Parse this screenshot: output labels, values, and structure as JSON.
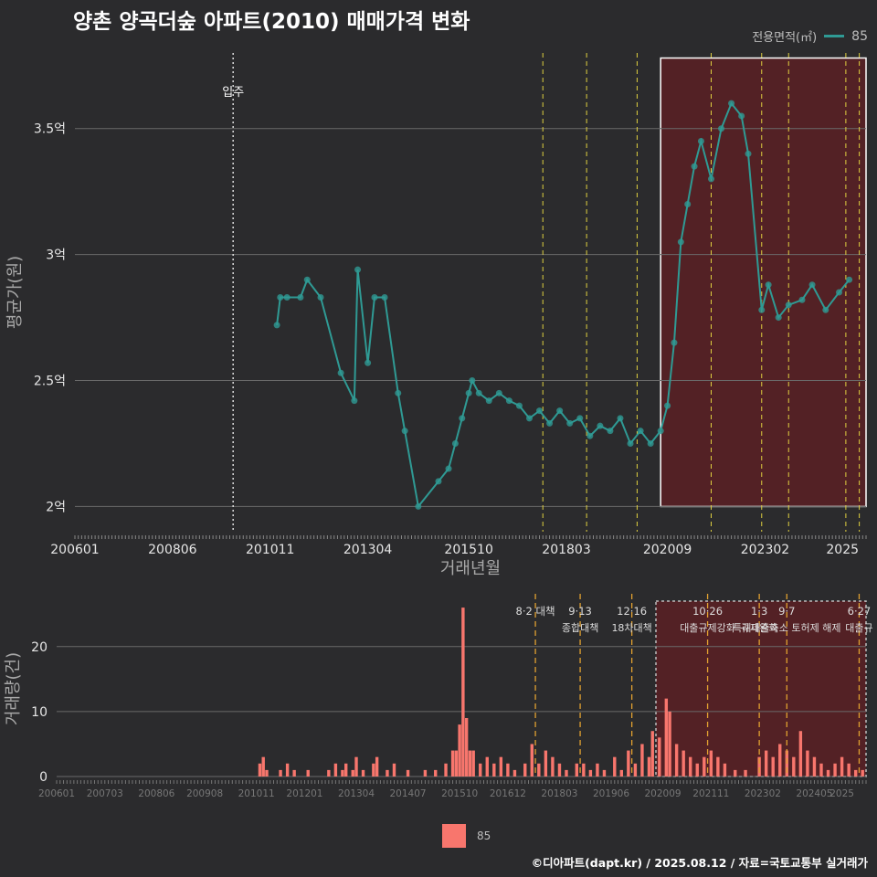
{
  "title": "양촌 양곡더숲 아파트(2010) 매매가격 변화",
  "caption": "©디아파트(dapt.kr) / 2025.08.12 / 자료=국토교통부 실거래가",
  "colors": {
    "background": "#2b2b2d",
    "price_series": "#2f9a94",
    "volume_bars": "#f8766d",
    "policy_lines": "#e0d040",
    "policy_lines_bottom": "#e0a030",
    "highlight_fill": "#5a2024",
    "grid": "#6a6a6a"
  },
  "chart_data": [
    {
      "type": "line",
      "name": "price",
      "xlabel": "거래년월",
      "ylabel": "평균가(원)",
      "xlim": [
        "2006-01",
        "2025-08"
      ],
      "ylim": [
        1.9,
        3.8
      ],
      "x_ticks": [
        "200601",
        "200806",
        "201011",
        "201304",
        "201510",
        "201803",
        "202009",
        "202302",
        "2025"
      ],
      "y_ticks": [
        {
          "v": 2.0,
          "label": "2억"
        },
        {
          "v": 2.5,
          "label": "2.5억"
        },
        {
          "v": 3.0,
          "label": "3억"
        },
        {
          "v": 3.5,
          "label": "3.5억"
        }
      ],
      "legend": {
        "title": "전용면적(㎡)",
        "entries": [
          "85"
        ],
        "position": "top-right"
      },
      "annotations": [
        {
          "x": "2009-12",
          "label": "입주"
        }
      ],
      "policy_dates": [
        "2017-08",
        "2018-09",
        "2019-12",
        "2021-10",
        "2023-01",
        "2023-09",
        "2025-02",
        "2025-06"
      ],
      "highlight": {
        "x_from": "2020-07",
        "x_to": "2025-08",
        "y_from": 2.0,
        "y_to": 3.78
      },
      "series": [
        {
          "name": "85",
          "points": [
            [
              "2011-01",
              2.72
            ],
            [
              "2011-02",
              2.83
            ],
            [
              "2011-04",
              2.83
            ],
            [
              "2011-08",
              2.83
            ],
            [
              "2011-10",
              2.9
            ],
            [
              "2012-02",
              2.83
            ],
            [
              "2012-08",
              2.53
            ],
            [
              "2012-12",
              2.42
            ],
            [
              "2013-01",
              2.94
            ],
            [
              "2013-04",
              2.57
            ],
            [
              "2013-06",
              2.83
            ],
            [
              "2013-09",
              2.83
            ],
            [
              "2014-01",
              2.45
            ],
            [
              "2014-03",
              2.3
            ],
            [
              "2014-07",
              2.0
            ],
            [
              "2015-01",
              2.1
            ],
            [
              "2015-04",
              2.15
            ],
            [
              "2015-06",
              2.25
            ],
            [
              "2015-08",
              2.35
            ],
            [
              "2015-10",
              2.45
            ],
            [
              "2015-11",
              2.5
            ],
            [
              "2016-01",
              2.45
            ],
            [
              "2016-04",
              2.42
            ],
            [
              "2016-07",
              2.45
            ],
            [
              "2016-10",
              2.42
            ],
            [
              "2017-01",
              2.4
            ],
            [
              "2017-04",
              2.35
            ],
            [
              "2017-07",
              2.38
            ],
            [
              "2017-10",
              2.33
            ],
            [
              "2018-01",
              2.38
            ],
            [
              "2018-04",
              2.33
            ],
            [
              "2018-07",
              2.35
            ],
            [
              "2018-10",
              2.28
            ],
            [
              "2019-01",
              2.32
            ],
            [
              "2019-04",
              2.3
            ],
            [
              "2019-07",
              2.35
            ],
            [
              "2019-10",
              2.25
            ],
            [
              "2020-01",
              2.3
            ],
            [
              "2020-04",
              2.25
            ],
            [
              "2020-07",
              2.3
            ],
            [
              "2020-09",
              2.4
            ],
            [
              "2020-11",
              2.65
            ],
            [
              "2021-01",
              3.05
            ],
            [
              "2021-03",
              3.2
            ],
            [
              "2021-05",
              3.35
            ],
            [
              "2021-07",
              3.45
            ],
            [
              "2021-10",
              3.3
            ],
            [
              "2022-01",
              3.5
            ],
            [
              "2022-04",
              3.6
            ],
            [
              "2022-07",
              3.55
            ],
            [
              "2022-09",
              3.4
            ],
            [
              "2023-01",
              2.78
            ],
            [
              "2023-03",
              2.88
            ],
            [
              "2023-06",
              2.75
            ],
            [
              "2023-09",
              2.8
            ],
            [
              "2024-01",
              2.82
            ],
            [
              "2024-04",
              2.88
            ],
            [
              "2024-08",
              2.78
            ],
            [
              "2024-12",
              2.85
            ],
            [
              "2025-03",
              2.9
            ]
          ]
        }
      ]
    },
    {
      "type": "bar",
      "name": "volume",
      "ylabel": "거래량(건)",
      "ylim": [
        0,
        27
      ],
      "x_ticks": [
        "200601",
        "200703",
        "200806",
        "200908",
        "201011",
        "201201",
        "201304",
        "201407",
        "201510",
        "201612",
        "201803",
        "201906",
        "202009",
        "202111",
        "202302",
        "202405",
        "2025"
      ],
      "y_ticks": [
        {
          "v": 0,
          "label": "0"
        },
        {
          "v": 10,
          "label": "10"
        },
        {
          "v": 20,
          "label": "20"
        }
      ],
      "legend": {
        "entries": [
          "85"
        ],
        "position": "bottom"
      },
      "policies": [
        {
          "date": "2017-08",
          "line1": "8·2 대책",
          "line2": ""
        },
        {
          "date": "2018-09",
          "line1": "9·13",
          "line2": "종합대책"
        },
        {
          "date": "2019-12",
          "line1": "12·16",
          "line2": "18차대책"
        },
        {
          "date": "2021-10",
          "line1": "10·26",
          "line2": "대출규제강화"
        },
        {
          "date": "2023-01",
          "line1": "1·3",
          "line2": "규제완화"
        },
        {
          "date": "2023-09",
          "line1": "9·7",
          "line2": "특례대출축소 토허제 해제"
        },
        {
          "date": "2025-06",
          "line1": "6·27",
          "line2": "대출규"
        }
      ],
      "highlight": {
        "x_from": "2020-07",
        "x_to": "2025-08"
      },
      "bars": [
        [
          "2010-12",
          2
        ],
        [
          "2011-01",
          3
        ],
        [
          "2011-02",
          1
        ],
        [
          "2011-06",
          1
        ],
        [
          "2011-08",
          2
        ],
        [
          "2011-10",
          1
        ],
        [
          "2012-02",
          1
        ],
        [
          "2012-08",
          1
        ],
        [
          "2012-10",
          2
        ],
        [
          "2012-12",
          1
        ],
        [
          "2013-01",
          2
        ],
        [
          "2013-03",
          1
        ],
        [
          "2013-04",
          3
        ],
        [
          "2013-06",
          1
        ],
        [
          "2013-09",
          2
        ],
        [
          "2013-10",
          3
        ],
        [
          "2014-01",
          1
        ],
        [
          "2014-03",
          2
        ],
        [
          "2014-07",
          1
        ],
        [
          "2014-12",
          1
        ],
        [
          "2015-03",
          1
        ],
        [
          "2015-06",
          2
        ],
        [
          "2015-08",
          4
        ],
        [
          "2015-09",
          4
        ],
        [
          "2015-10",
          8
        ],
        [
          "2015-11",
          26
        ],
        [
          "2015-12",
          9
        ],
        [
          "2016-01",
          4
        ],
        [
          "2016-02",
          4
        ],
        [
          "2016-04",
          2
        ],
        [
          "2016-06",
          3
        ],
        [
          "2016-08",
          2
        ],
        [
          "2016-10",
          3
        ],
        [
          "2016-12",
          2
        ],
        [
          "2017-02",
          1
        ],
        [
          "2017-05",
          2
        ],
        [
          "2017-07",
          5
        ],
        [
          "2017-09",
          2
        ],
        [
          "2017-11",
          4
        ],
        [
          "2018-01",
          3
        ],
        [
          "2018-03",
          2
        ],
        [
          "2018-05",
          1
        ],
        [
          "2018-08",
          2
        ],
        [
          "2018-10",
          2
        ],
        [
          "2018-12",
          1
        ],
        [
          "2019-02",
          2
        ],
        [
          "2019-04",
          1
        ],
        [
          "2019-07",
          3
        ],
        [
          "2019-09",
          1
        ],
        [
          "2019-11",
          4
        ],
        [
          "2020-01",
          2
        ],
        [
          "2020-03",
          5
        ],
        [
          "2020-05",
          3
        ],
        [
          "2020-06",
          7
        ],
        [
          "2020-08",
          6
        ],
        [
          "2020-10",
          12
        ],
        [
          "2020-11",
          10
        ],
        [
          "2021-01",
          5
        ],
        [
          "2021-03",
          4
        ],
        [
          "2021-05",
          3
        ],
        [
          "2021-07",
          2
        ],
        [
          "2021-09",
          3
        ],
        [
          "2021-11",
          4
        ],
        [
          "2022-01",
          3
        ],
        [
          "2022-03",
          2
        ],
        [
          "2022-06",
          1
        ],
        [
          "2022-09",
          1
        ],
        [
          "2023-01",
          3
        ],
        [
          "2023-03",
          4
        ],
        [
          "2023-05",
          3
        ],
        [
          "2023-07",
          5
        ],
        [
          "2023-09",
          4
        ],
        [
          "2023-11",
          3
        ],
        [
          "2024-01",
          7
        ],
        [
          "2024-03",
          4
        ],
        [
          "2024-05",
          3
        ],
        [
          "2024-07",
          2
        ],
        [
          "2024-09",
          1
        ],
        [
          "2024-11",
          2
        ],
        [
          "2025-01",
          3
        ],
        [
          "2025-03",
          2
        ],
        [
          "2025-05",
          1
        ],
        [
          "2025-07",
          1
        ]
      ]
    }
  ]
}
